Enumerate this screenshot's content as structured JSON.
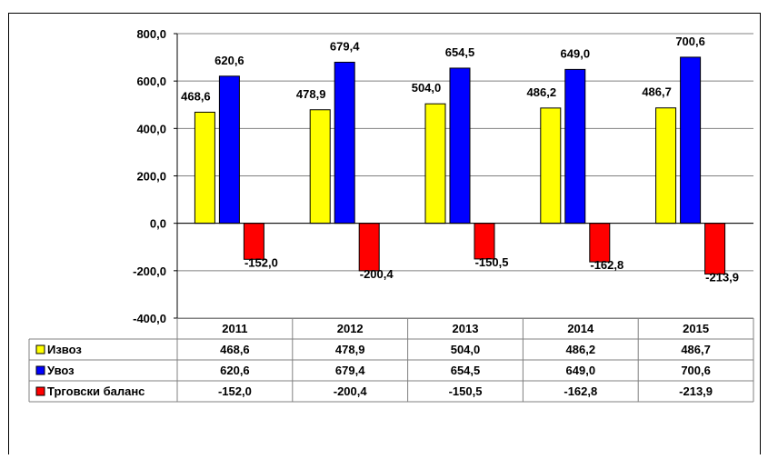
{
  "chart_data": {
    "type": "bar",
    "categories": [
      "2011",
      "2012",
      "2013",
      "2014",
      "2015"
    ],
    "series": [
      {
        "name": "Извоз",
        "color": "#FFFF00",
        "values": [
          468.6,
          478.9,
          504.0,
          486.2,
          486.7
        ],
        "labels": [
          "468,6",
          "478,9",
          "504,0",
          "486,2",
          "486,7"
        ]
      },
      {
        "name": "Увоз",
        "color": "#0000FF",
        "values": [
          620.6,
          679.4,
          654.5,
          649.0,
          700.6
        ],
        "labels": [
          "620,6",
          "679,4",
          "654,5",
          "649,0",
          "700,6"
        ]
      },
      {
        "name": "Трговски баланс",
        "color": "#FF0000",
        "values": [
          -152.0,
          -200.4,
          -150.5,
          -162.8,
          -213.9
        ],
        "labels": [
          "-152,0",
          "-200,4",
          "-150,5",
          "-162,8",
          "-213,9"
        ]
      }
    ],
    "ylim": [
      -400,
      800
    ],
    "yticks": [
      -400,
      -200,
      0,
      200,
      400,
      600,
      800
    ],
    "ytick_labels": [
      "-400,0",
      "-200,0",
      "0,0",
      "200,0",
      "400,0",
      "600,0",
      "800,0"
    ],
    "grid": true,
    "legend": "data table below chart",
    "title": "",
    "xlabel": "",
    "ylabel": ""
  }
}
